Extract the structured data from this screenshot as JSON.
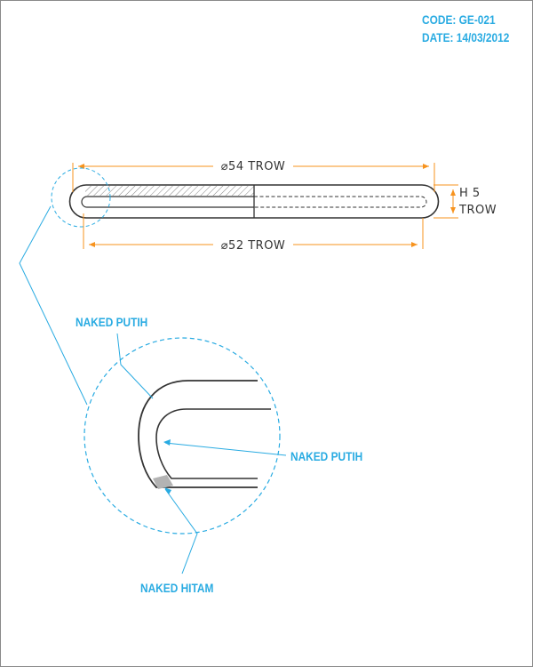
{
  "header": {
    "code": "CODE: GE-021",
    "date": "DATE: 14/03/2012"
  },
  "dimensions": {
    "outer_diameter": "⌀54 TROW",
    "inner_diameter": "⌀52 TROW",
    "height_line1": "H 5",
    "height_line2": "TROW"
  },
  "callouts": {
    "top_left": "NAKED PUTIH",
    "inner_right": "NAKED PUTIH",
    "bottom": "NAKED HITAM"
  },
  "colors": {
    "dimension": "#f7931e",
    "callout": "#29abe2",
    "outline": "#333333",
    "shade": "#b3b3b3"
  }
}
